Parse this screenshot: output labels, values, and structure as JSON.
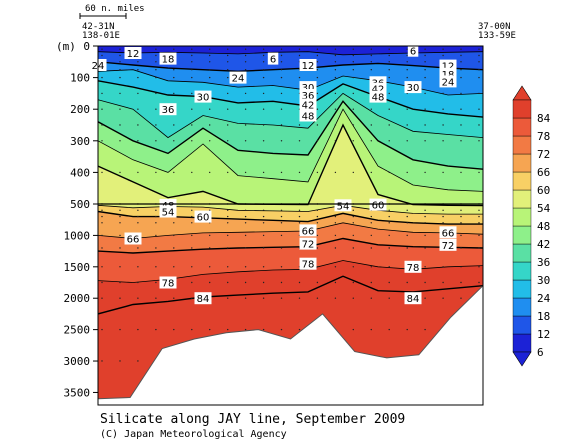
{
  "chart_data": {
    "type": "heatmap",
    "title": "Silicate along JAY line, September 2009",
    "credit": "(C) Japan Meteorological Agency",
    "scale_label": "60 n. miles",
    "y_unit_label": "(m)",
    "start_station": {
      "lat": "42-31N",
      "lon": "138-01E"
    },
    "end_station": {
      "lat": "37-00N",
      "lon": "133-59E"
    },
    "y_ticks_upper": [
      0,
      100,
      200,
      300,
      400,
      500
    ],
    "y_ticks_lower": [
      1000,
      1500,
      2000,
      2500,
      3000,
      3500
    ],
    "y_break_depth": 500,
    "ylim": [
      0,
      3700
    ],
    "colorbar_levels": [
      6,
      12,
      18,
      24,
      30,
      36,
      42,
      48,
      54,
      60,
      66,
      72,
      78,
      84
    ],
    "colorbar_colors": [
      "#1c22d6",
      "#1f56e8",
      "#1f8ef0",
      "#22bde8",
      "#35d6c8",
      "#5ae0a4",
      "#8ef08a",
      "#b8f478",
      "#e2f07a",
      "#f8d065",
      "#f6a552",
      "#f27a44",
      "#ec5a3a",
      "#e0402c"
    ],
    "contours": [
      {
        "label": 6,
        "depths": [
          18,
          22,
          20,
          22,
          25,
          20,
          18,
          28,
          25,
          22,
          20,
          18
        ]
      },
      {
        "label": 12,
        "depths": [
          50,
          60,
          70,
          75,
          80,
          75,
          70,
          60,
          55,
          62,
          70,
          75
        ]
      },
      {
        "label": 18,
        "depths": [
          80,
          75,
          110,
          115,
          130,
          125,
          140,
          95,
          110,
          130,
          155,
          150
        ]
      },
      {
        "label": 24,
        "depths": [
          110,
          130,
          155,
          160,
          180,
          175,
          190,
          120,
          160,
          200,
          215,
          225
        ]
      },
      {
        "label": 30,
        "depths": [
          170,
          200,
          290,
          220,
          245,
          250,
          260,
          150,
          220,
          270,
          280,
          290
        ]
      },
      {
        "label": 36,
        "depths": [
          240,
          300,
          340,
          260,
          330,
          340,
          345,
          175,
          300,
          360,
          380,
          390
        ]
      },
      {
        "label": 42,
        "depths": [
          300,
          360,
          400,
          310,
          410,
          420,
          430,
          200,
          380,
          440,
          455,
          460
        ]
      },
      {
        "label": 48,
        "depths": [
          380,
          430,
          480,
          460,
          500,
          505,
          510,
          250,
          470,
          510,
          520,
          525
        ]
      },
      {
        "label": 54,
        "depths": [
          520,
          560,
          540,
          550,
          600,
          610,
          620,
          520,
          600,
          650,
          660,
          660
        ]
      },
      {
        "label": 60,
        "depths": [
          620,
          700,
          700,
          720,
          740,
          760,
          780,
          650,
          760,
          800,
          820,
          820
        ]
      },
      {
        "label": 66,
        "depths": [
          1000,
          1050,
          1000,
          960,
          950,
          940,
          930,
          800,
          900,
          950,
          960,
          980
        ]
      },
      {
        "label": 72,
        "depths": [
          1250,
          1280,
          1250,
          1220,
          1200,
          1190,
          1180,
          1050,
          1150,
          1180,
          1190,
          1200
        ]
      },
      {
        "label": 78,
        "depths": [
          1720,
          1750,
          1700,
          1620,
          1580,
          1550,
          1540,
          1400,
          1500,
          1540,
          1500,
          1480
        ]
      },
      {
        "label": 84,
        "depths": [
          2250,
          2100,
          2050,
          1980,
          1950,
          1920,
          1900,
          1650,
          1880,
          1900,
          1850,
          1800
        ]
      }
    ],
    "label_positions": [
      {
        "text": "6",
        "col": 5,
        "depth": 40
      },
      {
        "text": "6",
        "col": 9,
        "depth": 15
      },
      {
        "text": "12",
        "col": 1,
        "depth": 22
      },
      {
        "text": "12",
        "col": 6,
        "depth": 60
      },
      {
        "text": "12",
        "col": 10,
        "depth": 62
      },
      {
        "text": "18",
        "col": 2,
        "depth": 40
      },
      {
        "text": "18",
        "col": 8,
        "depth": 125
      },
      {
        "text": "18",
        "col": 10,
        "depth": 88
      },
      {
        "text": "24",
        "col": 0,
        "depth": 60
      },
      {
        "text": "24",
        "col": 4,
        "depth": 100
      },
      {
        "text": "24",
        "col": 8,
        "depth": 145
      },
      {
        "text": "24",
        "col": 10,
        "depth": 112
      },
      {
        "text": "30",
        "col": 3,
        "depth": 160
      },
      {
        "text": "30",
        "col": 6,
        "depth": 130
      },
      {
        "text": "30",
        "col": 9,
        "depth": 130
      },
      {
        "text": "36",
        "col": 2,
        "depth": 200
      },
      {
        "text": "36",
        "col": 6,
        "depth": 155
      },
      {
        "text": "36",
        "col": 8,
        "depth": 115
      },
      {
        "text": "42",
        "col": 6,
        "depth": 185
      },
      {
        "text": "42",
        "col": 8,
        "depth": 135
      },
      {
        "text": "48",
        "col": 6,
        "depth": 220
      },
      {
        "text": "48",
        "col": 8,
        "depth": 160
      },
      {
        "text": "48",
        "col": 2,
        "depth": 515
      },
      {
        "text": "54",
        "col": 2,
        "depth": 620
      },
      {
        "text": "54",
        "col": 7,
        "depth": 520
      },
      {
        "text": "60",
        "col": 3,
        "depth": 700
      },
      {
        "text": "60",
        "col": 8,
        "depth": 510
      },
      {
        "text": "66",
        "col": 1,
        "depth": 1050
      },
      {
        "text": "66",
        "col": 6,
        "depth": 920
      },
      {
        "text": "66",
        "col": 10,
        "depth": 950
      },
      {
        "text": "72",
        "col": 6,
        "depth": 1130
      },
      {
        "text": "72",
        "col": 10,
        "depth": 1150
      },
      {
        "text": "78",
        "col": 2,
        "depth": 1750
      },
      {
        "text": "78",
        "col": 6,
        "depth": 1450
      },
      {
        "text": "78",
        "col": 9,
        "depth": 1500
      },
      {
        "text": "84",
        "col": 3,
        "depth": 2000
      },
      {
        "text": "84",
        "col": 9,
        "depth": 2000
      }
    ],
    "bottom_depths": [
      3600,
      3580,
      2800,
      2650,
      2550,
      2500,
      2650,
      2250,
      2850,
      2950,
      2900,
      2300,
      1800
    ]
  }
}
